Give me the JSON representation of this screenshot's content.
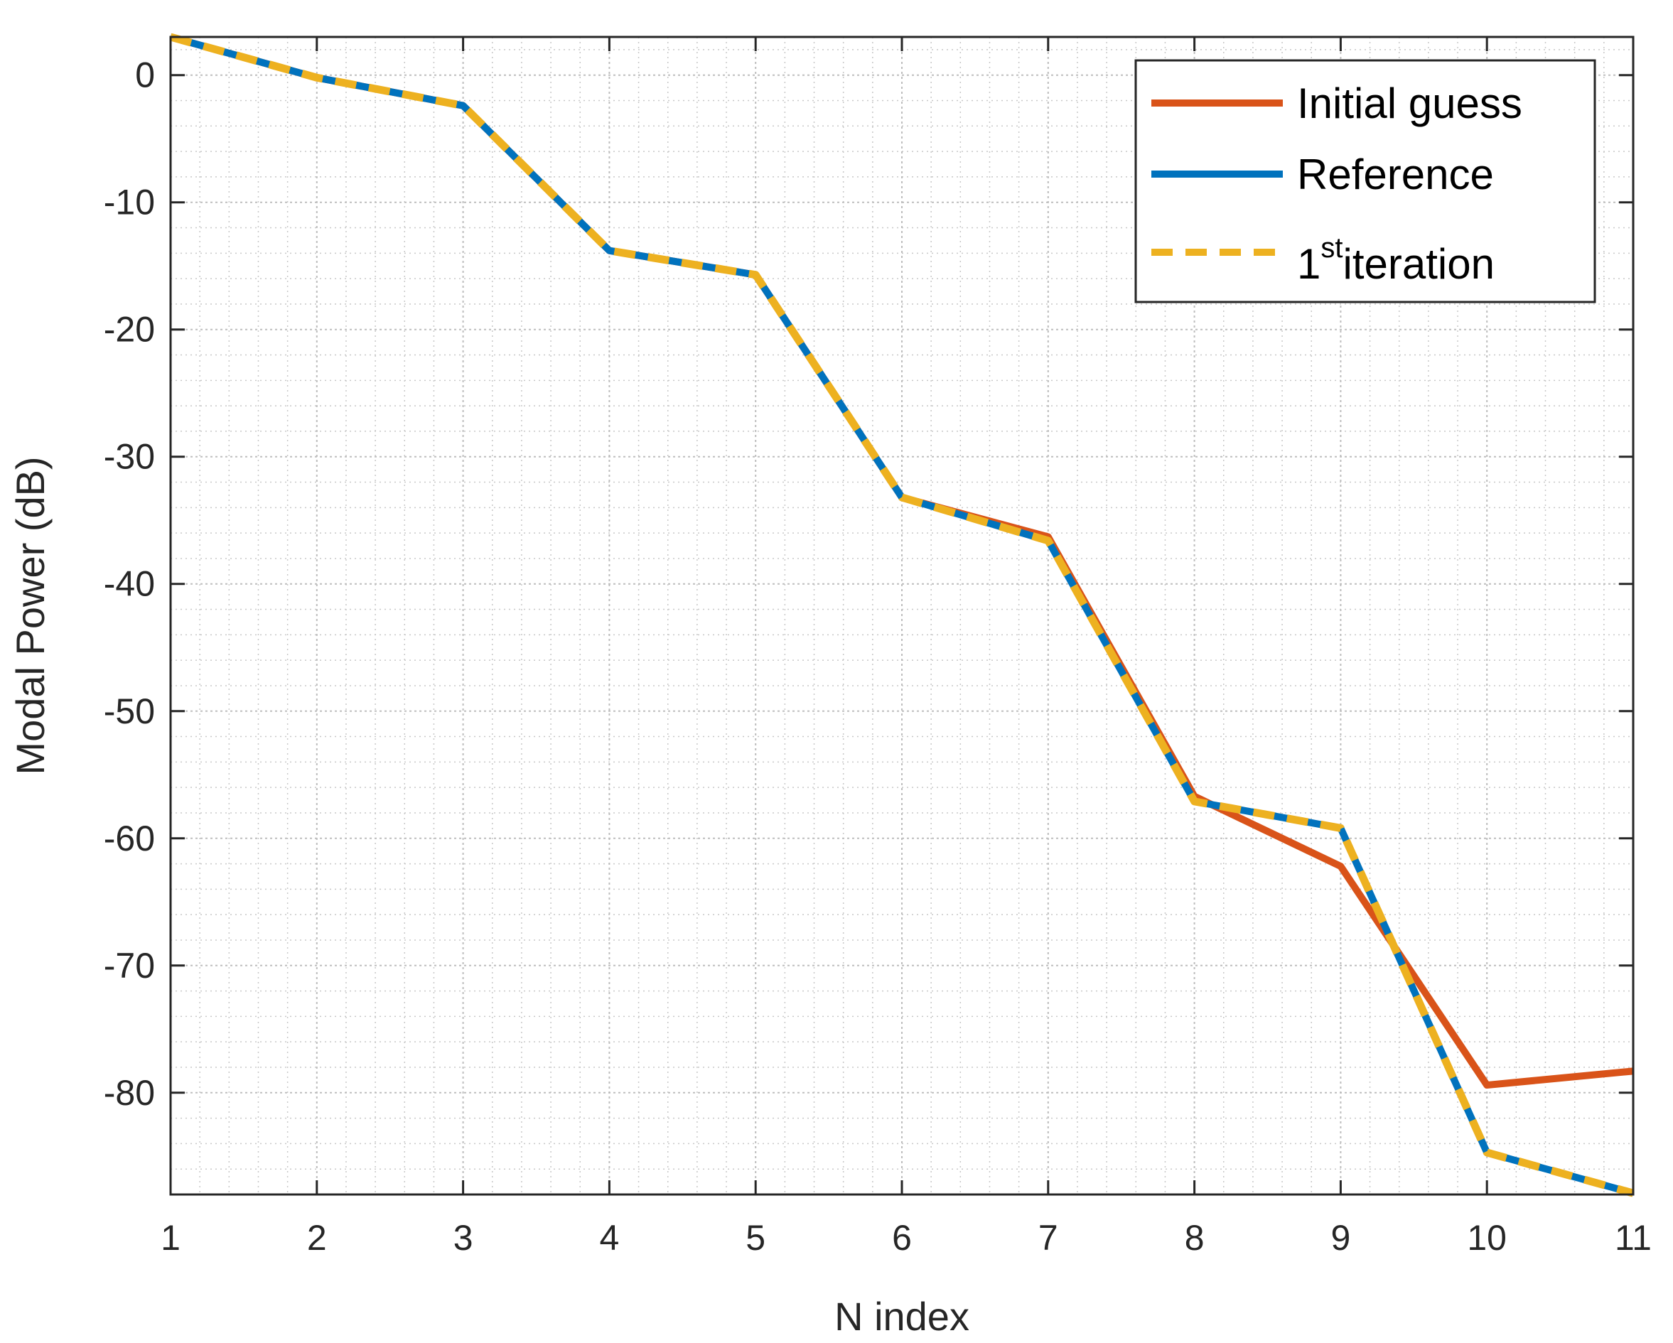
{
  "chart_data": {
    "type": "line",
    "title": "",
    "xlabel": "N index",
    "ylabel": "Modal Power (dB)",
    "xlim": [
      1,
      11
    ],
    "ylim": [
      -88,
      3
    ],
    "xticks": [
      1,
      2,
      3,
      4,
      5,
      6,
      7,
      8,
      9,
      10,
      11
    ],
    "yticks": [
      0,
      -10,
      -20,
      -30,
      -40,
      -50,
      -60,
      -70,
      -80
    ],
    "grid": true,
    "minor_grid": true,
    "legend_position": "top-right",
    "x": [
      1,
      2,
      3,
      4,
      5,
      6,
      7,
      8,
      9,
      10,
      11
    ],
    "series": [
      {
        "name": "Initial guess",
        "color": "#D95319",
        "style": "solid",
        "values": [
          3.0,
          -0.2,
          -2.4,
          -13.8,
          -15.7,
          -33.2,
          -36.3,
          -56.7,
          -62.2,
          -79.4,
          -78.3
        ]
      },
      {
        "name": "Reference",
        "color": "#0072BD",
        "style": "solid",
        "values": [
          3.0,
          -0.2,
          -2.4,
          -13.8,
          -15.7,
          -33.2,
          -36.6,
          -57.1,
          -59.2,
          -84.7,
          -87.9
        ]
      },
      {
        "name": "1st iteration",
        "color": "#EDB120",
        "style": "dashed",
        "values": [
          3.0,
          -0.2,
          -2.4,
          -13.8,
          -15.7,
          -33.2,
          -36.6,
          -57.1,
          -59.2,
          -84.7,
          -87.9
        ]
      }
    ]
  },
  "legend": {
    "initial_guess": "Initial guess",
    "reference": "Reference",
    "iteration_prefix": "1",
    "iteration_sup": "st",
    "iteration_suffix": "iteration"
  }
}
